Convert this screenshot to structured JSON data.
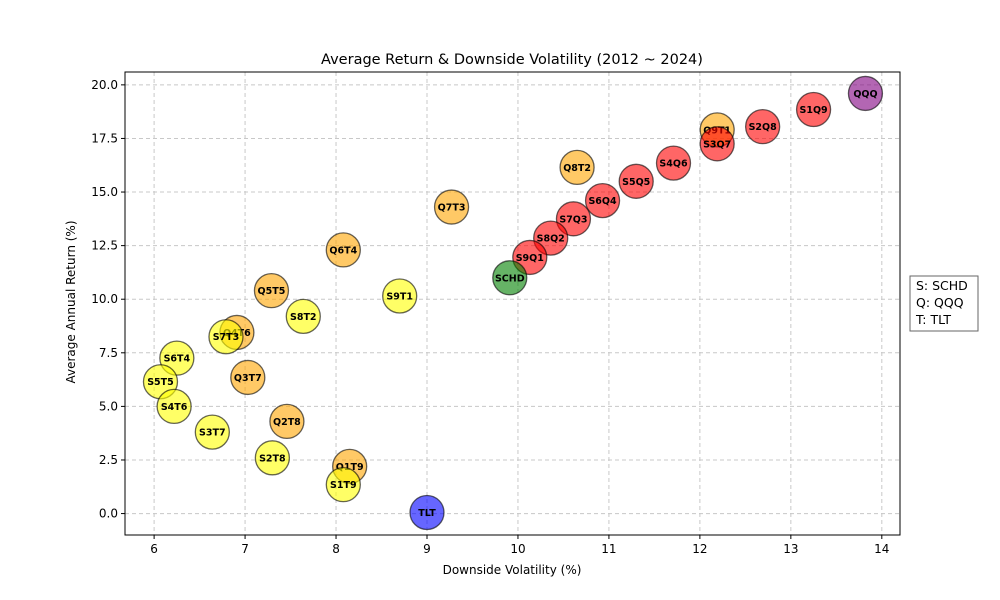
{
  "chart_data": {
    "type": "scatter",
    "title": "Average Return & Downside Volatility (2012 ~ 2024)",
    "xlabel": "Downside Volatility (%)",
    "ylabel": "Average Annual Return (%)",
    "xlim": [
      5.68,
      14.2
    ],
    "ylim": [
      -1.0,
      20.6
    ],
    "xticks": [
      6,
      7,
      8,
      9,
      10,
      11,
      12,
      13,
      14
    ],
    "yticks": [
      0.0,
      2.5,
      5.0,
      7.5,
      10.0,
      12.5,
      15.0,
      17.5,
      20.0
    ],
    "grid": true,
    "legend": {
      "placement": "right",
      "lines": [
        "S: SCHD",
        "Q: QQQ",
        "T: TLT"
      ]
    },
    "colors": {
      "yellow": "#ffff00",
      "orange": "#ffa500",
      "red": "#ff0000",
      "green": "#008000",
      "blue": "#0000ff",
      "purple": "#800080"
    },
    "points": [
      {
        "label": "QQQ",
        "x": 13.82,
        "y": 19.6,
        "color": "purple"
      },
      {
        "label": "S1Q9",
        "x": 13.25,
        "y": 18.85,
        "color": "red"
      },
      {
        "label": "S2Q8",
        "x": 12.69,
        "y": 18.05,
        "color": "red"
      },
      {
        "label": "Q9T1",
        "x": 12.19,
        "y": 17.9,
        "color": "orange"
      },
      {
        "label": "S3Q7",
        "x": 12.19,
        "y": 17.25,
        "color": "red"
      },
      {
        "label": "S4Q6",
        "x": 11.71,
        "y": 16.35,
        "color": "red"
      },
      {
        "label": "Q8T2",
        "x": 10.65,
        "y": 16.15,
        "color": "orange"
      },
      {
        "label": "S5Q5",
        "x": 11.3,
        "y": 15.5,
        "color": "red"
      },
      {
        "label": "S6Q4",
        "x": 10.93,
        "y": 14.6,
        "color": "red"
      },
      {
        "label": "Q7T3",
        "x": 9.27,
        "y": 14.3,
        "color": "orange"
      },
      {
        "label": "S7Q3",
        "x": 10.61,
        "y": 13.75,
        "color": "red"
      },
      {
        "label": "S8Q2",
        "x": 10.36,
        "y": 12.85,
        "color": "red"
      },
      {
        "label": "Q6T4",
        "x": 8.08,
        "y": 12.3,
        "color": "orange"
      },
      {
        "label": "S9Q1",
        "x": 10.13,
        "y": 11.95,
        "color": "red"
      },
      {
        "label": "SCHD",
        "x": 9.91,
        "y": 11.0,
        "color": "green"
      },
      {
        "label": "Q5T5",
        "x": 7.29,
        "y": 10.4,
        "color": "orange"
      },
      {
        "label": "S9T1",
        "x": 8.7,
        "y": 10.15,
        "color": "yellow"
      },
      {
        "label": "S8T2",
        "x": 7.64,
        "y": 9.2,
        "color": "yellow"
      },
      {
        "label": "Q4T6",
        "x": 6.91,
        "y": 8.45,
        "color": "orange"
      },
      {
        "label": "S7T3",
        "x": 6.79,
        "y": 8.25,
        "color": "yellow"
      },
      {
        "label": "S6T4",
        "x": 6.25,
        "y": 7.25,
        "color": "yellow"
      },
      {
        "label": "Q3T7",
        "x": 7.03,
        "y": 6.35,
        "color": "orange"
      },
      {
        "label": "S5T5",
        "x": 6.07,
        "y": 6.15,
        "color": "yellow"
      },
      {
        "label": "S4T6",
        "x": 6.22,
        "y": 5.0,
        "color": "yellow"
      },
      {
        "label": "Q2T8",
        "x": 7.46,
        "y": 4.3,
        "color": "orange"
      },
      {
        "label": "S3T7",
        "x": 6.64,
        "y": 3.8,
        "color": "yellow"
      },
      {
        "label": "S2T8",
        "x": 7.3,
        "y": 2.6,
        "color": "yellow"
      },
      {
        "label": "Q1T9",
        "x": 8.15,
        "y": 2.2,
        "color": "orange"
      },
      {
        "label": "S1T9",
        "x": 8.08,
        "y": 1.35,
        "color": "yellow"
      },
      {
        "label": "TLT",
        "x": 9.0,
        "y": 0.05,
        "color": "blue"
      }
    ]
  }
}
